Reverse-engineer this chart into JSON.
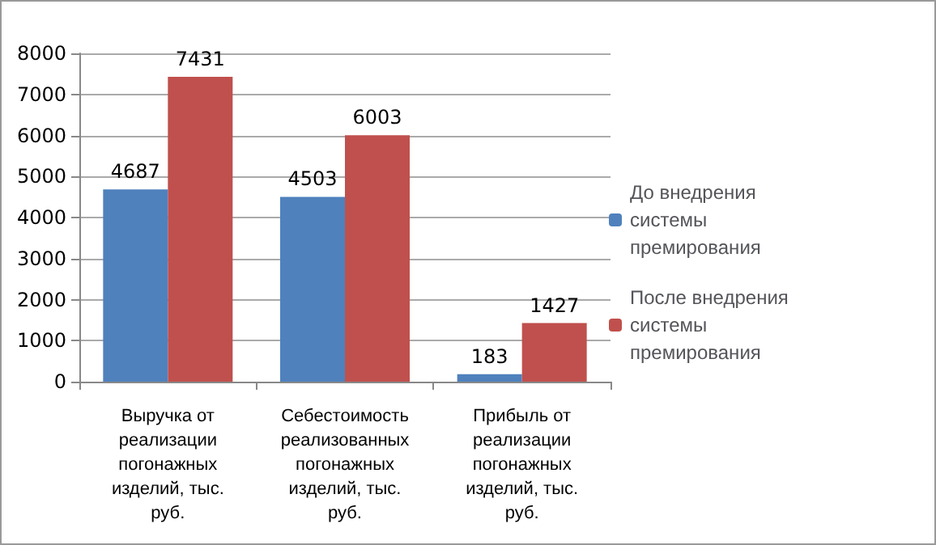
{
  "chart_data": {
    "type": "bar",
    "categories": [
      "Выручка от реализации погонажных изделий, тыс. руб.",
      "Себестоимость реализованных погонажных изделий, тыс. руб.",
      "Прибыль от реализации погонажных изделий, тыс. руб."
    ],
    "series": [
      {
        "name": "До внедрения системы премирования",
        "color": "#4f81bd",
        "values": [
          4687,
          4503,
          183
        ]
      },
      {
        "name": "После внедрения системы премирования",
        "color": "#c0504d",
        "values": [
          7431,
          6003,
          1427
        ]
      }
    ],
    "ylim": [
      0,
      8000
    ],
    "yticks": [
      0,
      1000,
      2000,
      3000,
      4000,
      5000,
      6000,
      7000,
      8000
    ],
    "grid": "y",
    "legend": "right",
    "data_labels": true
  }
}
